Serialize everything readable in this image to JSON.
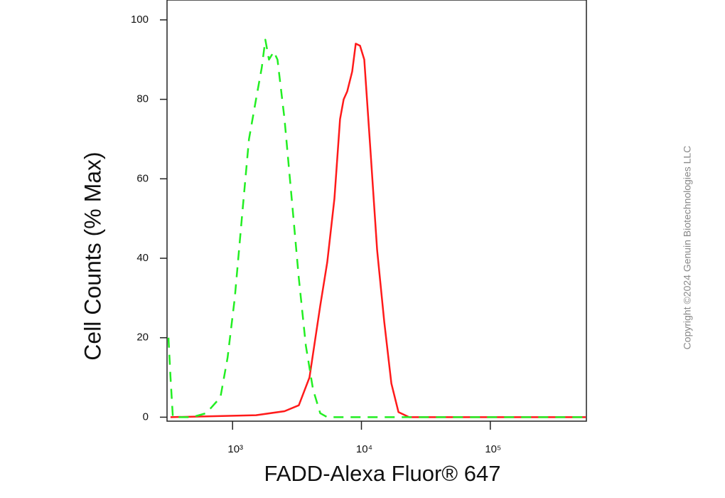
{
  "chart_data": {
    "type": "line",
    "xlabel": "FADD-Alexa Fluor® 647",
    "ylabel": "Cell Counts (% Max)",
    "xscale": "log",
    "xlim": [
      310,
      557000
    ],
    "ylim": [
      -1,
      105
    ],
    "xticks": [
      {
        "value": 1000,
        "label": "10³"
      },
      {
        "value": 10000,
        "label": "10⁴"
      },
      {
        "value": 100000,
        "label": "10⁵"
      }
    ],
    "yticks": [
      0,
      20,
      40,
      60,
      80,
      100
    ],
    "grid": false,
    "series": [
      {
        "color": "#ff1a1a",
        "dash": false,
        "x": [
          330,
          1521,
          2530,
          3265,
          3950,
          4785,
          5430,
          6170,
          6825,
          7280,
          7760,
          8475,
          9035,
          9750,
          10520,
          11640,
          13240,
          15030,
          17070,
          19380,
          23450,
          550000
        ],
        "values": [
          0,
          0.5,
          1.5,
          3,
          10,
          28,
          39,
          55,
          75,
          80,
          82,
          87,
          94,
          93.5,
          90,
          69,
          42,
          24,
          8.5,
          1.3,
          0,
          0
        ]
      },
      {
        "color": "#22ee22",
        "dash": true,
        "x": [
          318,
          330,
          344,
          484,
          625,
          805,
          915,
          1040,
          1180,
          1340,
          1521,
          1685,
          1795,
          1915,
          2090,
          2230,
          2530,
          2875,
          3265,
          3705,
          4210,
          4785,
          5430,
          550000
        ],
        "values": [
          20,
          10,
          0,
          0,
          1,
          5,
          15,
          30,
          50,
          70,
          80,
          88,
          95,
          90,
          92,
          90,
          75,
          55,
          35,
          18,
          7,
          1,
          0,
          0
        ]
      }
    ]
  },
  "copyright": "Copyright ©2024 Genuin Biotechnologies LLC"
}
